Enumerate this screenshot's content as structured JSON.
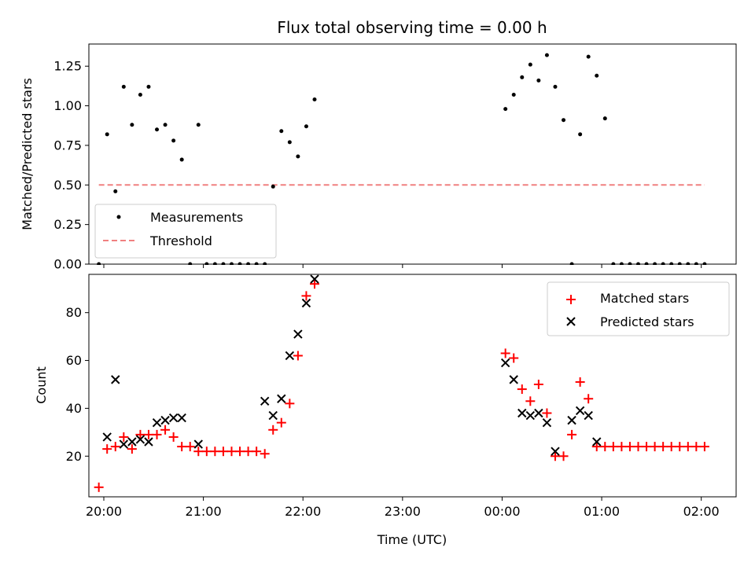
{
  "chart_data": [
    {
      "type": "scatter",
      "title": "Flux total observing time = 0.00 h",
      "ylabel": "Matched/Predicted stars",
      "xlabel": "",
      "xlim": [
        "19:51",
        "02:21"
      ],
      "ylim": [
        0,
        1.39
      ],
      "yticks": [
        0.0,
        0.25,
        0.5,
        0.75,
        1.0,
        1.25
      ],
      "ytick_labels": [
        "0.00",
        "0.25",
        "0.50",
        "0.75",
        "1.00",
        "1.25"
      ],
      "legend_position": "lower-left",
      "series": [
        {
          "name": "Measurements",
          "kind": "dots",
          "color": "#000000",
          "x": [
            "19:57",
            "20:02",
            "20:07",
            "20:12",
            "20:17",
            "20:22",
            "20:27",
            "20:32",
            "20:37",
            "20:42",
            "20:47",
            "20:52",
            "20:57",
            "21:02",
            "21:07",
            "21:12",
            "21:17",
            "21:22",
            "21:27",
            "21:32",
            "21:37",
            "21:42",
            "21:47",
            "21:52",
            "21:57",
            "22:02",
            "22:07",
            "00:02",
            "00:07",
            "00:12",
            "00:17",
            "00:22",
            "00:27",
            "00:32",
            "00:37",
            "00:42",
            "00:47",
            "00:52",
            "00:57",
            "01:02",
            "01:07",
            "01:12",
            "01:17",
            "01:22",
            "01:27",
            "01:32",
            "01:37",
            "01:42",
            "01:47",
            "01:52",
            "01:57",
            "02:02"
          ],
          "y": [
            0.0,
            0.82,
            0.46,
            1.12,
            0.88,
            1.07,
            1.12,
            0.85,
            0.88,
            0.78,
            0.66,
            0.0,
            0.88,
            0.0,
            0.0,
            0.0,
            0.0,
            0.0,
            0.0,
            0.0,
            0.0,
            0.49,
            0.84,
            0.77,
            0.68,
            0.87,
            1.04,
            0.98,
            1.07,
            1.18,
            1.26,
            1.16,
            1.32,
            1.12,
            0.91,
            0.0,
            0.82,
            1.31,
            1.19,
            0.92,
            0.0,
            0.0,
            0.0,
            0.0,
            0.0,
            0.0,
            0.0,
            0.0,
            0.0,
            0.0,
            0.0,
            0.0
          ]
        },
        {
          "name": "Threshold",
          "kind": "dashed-line",
          "color": "#f08080",
          "x": [
            "19:57",
            "02:02"
          ],
          "y": [
            0.5,
            0.5
          ]
        }
      ]
    },
    {
      "type": "scatter",
      "title": "",
      "ylabel": "Count",
      "xlabel": "Time (UTC)",
      "xlim": [
        "19:51",
        "02:21"
      ],
      "ylim": [
        3,
        96
      ],
      "yticks": [
        20,
        40,
        60,
        80
      ],
      "ytick_labels": [
        "20",
        "40",
        "60",
        "80"
      ],
      "xticks": [
        "20:00",
        "21:00",
        "22:00",
        "23:00",
        "00:00",
        "01:00",
        "02:00"
      ],
      "legend_position": "upper-right",
      "series": [
        {
          "name": "Matched stars",
          "marker": "plus",
          "color": "#ff0000",
          "x": [
            "19:57",
            "20:02",
            "20:07",
            "20:12",
            "20:17",
            "20:22",
            "20:27",
            "20:32",
            "20:37",
            "20:42",
            "20:47",
            "20:52",
            "20:57",
            "21:02",
            "21:07",
            "21:12",
            "21:17",
            "21:22",
            "21:27",
            "21:32",
            "21:37",
            "21:42",
            "21:47",
            "21:52",
            "21:57",
            "22:02",
            "22:07",
            "00:02",
            "00:07",
            "00:12",
            "00:17",
            "00:22",
            "00:27",
            "00:32",
            "00:37",
            "00:42",
            "00:47",
            "00:52",
            "00:57",
            "01:02",
            "01:07",
            "01:12",
            "01:17",
            "01:22",
            "01:27",
            "01:32",
            "01:37",
            "01:42",
            "01:47",
            "01:52",
            "01:57",
            "02:02"
          ],
          "y": [
            7,
            23,
            24,
            28,
            23,
            29,
            29,
            29,
            31,
            28,
            24,
            24,
            22,
            22,
            22,
            22,
            22,
            22,
            22,
            22,
            21,
            31,
            34,
            42,
            62,
            87,
            92,
            63,
            61,
            48,
            43,
            50,
            38,
            20,
            20,
            29,
            51,
            44,
            24,
            24,
            24,
            24,
            24,
            24,
            24,
            24,
            24,
            24,
            24,
            24,
            24,
            24
          ]
        },
        {
          "name": "Predicted stars",
          "marker": "x",
          "color": "#000000",
          "x": [
            "20:02",
            "20:07",
            "20:12",
            "20:17",
            "20:22",
            "20:27",
            "20:32",
            "20:37",
            "20:42",
            "20:47",
            "20:57",
            "21:37",
            "21:42",
            "21:47",
            "21:52",
            "21:57",
            "22:02",
            "22:07",
            "00:02",
            "00:07",
            "00:12",
            "00:17",
            "00:22",
            "00:27",
            "00:32",
            "00:42",
            "00:47",
            "00:52",
            "00:57"
          ],
          "y": [
            28,
            52,
            25,
            26,
            27,
            26,
            34,
            35,
            36,
            36,
            25,
            43,
            37,
            44,
            62,
            71,
            84,
            94,
            59,
            52,
            38,
            37,
            38,
            34,
            22,
            35,
            39,
            37,
            26
          ]
        }
      ]
    }
  ]
}
